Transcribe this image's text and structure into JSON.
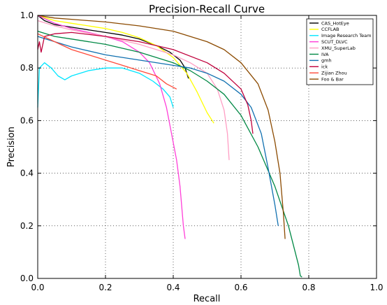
{
  "chart_data": {
    "type": "line",
    "title": "Precision-Recall Curve",
    "xlabel": "Recall",
    "ylabel": "Precision",
    "xlim": [
      0.0,
      1.0
    ],
    "ylim": [
      0.0,
      1.0
    ],
    "grid": true,
    "legend_position": "top-right",
    "xticks": [
      "0.0",
      "0.2",
      "0.4",
      "0.6",
      "0.8",
      "1.0"
    ],
    "yticks": [
      "0.0",
      "0.2",
      "0.4",
      "0.6",
      "0.8",
      "1.0"
    ],
    "series": [
      {
        "name": "CAS_HotEye",
        "color": "#000000",
        "points": [
          [
            0.0,
            1.0
          ],
          [
            0.02,
            0.98
          ],
          [
            0.05,
            0.965
          ],
          [
            0.1,
            0.955
          ],
          [
            0.15,
            0.945
          ],
          [
            0.2,
            0.935
          ],
          [
            0.25,
            0.925
          ],
          [
            0.3,
            0.91
          ],
          [
            0.35,
            0.885
          ],
          [
            0.39,
            0.86
          ],
          [
            0.42,
            0.83
          ],
          [
            0.435,
            0.8
          ],
          [
            0.44,
            0.78
          ],
          [
            0.445,
            0.76
          ]
        ]
      },
      {
        "name": "CCFLAB",
        "color": "#ffff00",
        "points": [
          [
            0.0,
            1.0
          ],
          [
            0.05,
            0.98
          ],
          [
            0.1,
            0.97
          ],
          [
            0.15,
            0.96
          ],
          [
            0.2,
            0.95
          ],
          [
            0.25,
            0.935
          ],
          [
            0.3,
            0.915
          ],
          [
            0.35,
            0.885
          ],
          [
            0.4,
            0.84
          ],
          [
            0.44,
            0.78
          ],
          [
            0.47,
            0.71
          ],
          [
            0.5,
            0.63
          ],
          [
            0.52,
            0.59
          ]
        ]
      },
      {
        "name": "Image Research Team",
        "color": "#00e5ff",
        "points": [
          [
            0.0,
            0.65
          ],
          [
            0.005,
            0.8
          ],
          [
            0.02,
            0.82
          ],
          [
            0.04,
            0.8
          ],
          [
            0.06,
            0.77
          ],
          [
            0.08,
            0.755
          ],
          [
            0.1,
            0.77
          ],
          [
            0.15,
            0.79
          ],
          [
            0.2,
            0.8
          ],
          [
            0.25,
            0.8
          ],
          [
            0.3,
            0.78
          ],
          [
            0.34,
            0.75
          ],
          [
            0.37,
            0.72
          ],
          [
            0.39,
            0.69
          ],
          [
            0.4,
            0.65
          ]
        ]
      },
      {
        "name": "SCUT_DLVC",
        "color": "#ff3fd8",
        "points": [
          [
            0.0,
            1.0
          ],
          [
            0.05,
            0.97
          ],
          [
            0.1,
            0.95
          ],
          [
            0.15,
            0.935
          ],
          [
            0.2,
            0.92
          ],
          [
            0.25,
            0.9
          ],
          [
            0.3,
            0.86
          ],
          [
            0.33,
            0.82
          ],
          [
            0.36,
            0.74
          ],
          [
            0.38,
            0.65
          ],
          [
            0.395,
            0.55
          ],
          [
            0.41,
            0.45
          ],
          [
            0.42,
            0.35
          ],
          [
            0.43,
            0.2
          ],
          [
            0.435,
            0.15
          ]
        ]
      },
      {
        "name": "XMU_SuperLab",
        "color": "#ff9ec4",
        "points": [
          [
            0.0,
            0.98
          ],
          [
            0.05,
            0.96
          ],
          [
            0.1,
            0.945
          ],
          [
            0.2,
            0.92
          ],
          [
            0.3,
            0.89
          ],
          [
            0.4,
            0.85
          ],
          [
            0.45,
            0.82
          ],
          [
            0.5,
            0.78
          ],
          [
            0.53,
            0.72
          ],
          [
            0.55,
            0.64
          ],
          [
            0.56,
            0.55
          ],
          [
            0.565,
            0.45
          ]
        ]
      },
      {
        "name": "IVA",
        "color": "#008844",
        "points": [
          [
            0.0,
            0.94
          ],
          [
            0.05,
            0.92
          ],
          [
            0.1,
            0.91
          ],
          [
            0.2,
            0.89
          ],
          [
            0.3,
            0.86
          ],
          [
            0.4,
            0.82
          ],
          [
            0.45,
            0.79
          ],
          [
            0.5,
            0.75
          ],
          [
            0.55,
            0.7
          ],
          [
            0.6,
            0.62
          ],
          [
            0.65,
            0.5
          ],
          [
            0.7,
            0.35
          ],
          [
            0.74,
            0.2
          ],
          [
            0.77,
            0.05
          ],
          [
            0.775,
            0.01
          ],
          [
            0.78,
            0.005
          ]
        ]
      },
      {
        "name": "gmh",
        "color": "#1070b0",
        "points": [
          [
            0.0,
            0.92
          ],
          [
            0.05,
            0.9
          ],
          [
            0.1,
            0.88
          ],
          [
            0.2,
            0.85
          ],
          [
            0.3,
            0.83
          ],
          [
            0.4,
            0.81
          ],
          [
            0.45,
            0.8
          ],
          [
            0.5,
            0.78
          ],
          [
            0.55,
            0.75
          ],
          [
            0.6,
            0.7
          ],
          [
            0.63,
            0.65
          ],
          [
            0.66,
            0.55
          ],
          [
            0.68,
            0.42
          ],
          [
            0.7,
            0.28
          ],
          [
            0.71,
            0.2
          ]
        ]
      },
      {
        "name": "ick",
        "color": "#c0003c",
        "points": [
          [
            0.0,
            0.87
          ],
          [
            0.005,
            0.9
          ],
          [
            0.01,
            0.86
          ],
          [
            0.02,
            0.92
          ],
          [
            0.05,
            0.93
          ],
          [
            0.1,
            0.935
          ],
          [
            0.2,
            0.92
          ],
          [
            0.3,
            0.9
          ],
          [
            0.4,
            0.87
          ],
          [
            0.5,
            0.82
          ],
          [
            0.55,
            0.78
          ],
          [
            0.6,
            0.72
          ],
          [
            0.62,
            0.66
          ],
          [
            0.63,
            0.6
          ],
          [
            0.635,
            0.55
          ]
        ]
      },
      {
        "name": "Zijian Zhou",
        "color": "#ff4a3a",
        "points": [
          [
            0.0,
            0.93
          ],
          [
            0.05,
            0.9
          ],
          [
            0.1,
            0.87
          ],
          [
            0.15,
            0.85
          ],
          [
            0.2,
            0.83
          ],
          [
            0.25,
            0.81
          ],
          [
            0.3,
            0.79
          ],
          [
            0.35,
            0.77
          ],
          [
            0.38,
            0.74
          ],
          [
            0.41,
            0.72
          ]
        ]
      },
      {
        "name": "Foo & Bar",
        "color": "#8b4a00",
        "points": [
          [
            0.0,
            1.0
          ],
          [
            0.05,
            0.99
          ],
          [
            0.1,
            0.985
          ],
          [
            0.2,
            0.975
          ],
          [
            0.3,
            0.96
          ],
          [
            0.4,
            0.94
          ],
          [
            0.5,
            0.9
          ],
          [
            0.55,
            0.87
          ],
          [
            0.6,
            0.82
          ],
          [
            0.65,
            0.74
          ],
          [
            0.68,
            0.64
          ],
          [
            0.7,
            0.52
          ],
          [
            0.715,
            0.4
          ],
          [
            0.725,
            0.25
          ],
          [
            0.73,
            0.15
          ]
        ]
      }
    ]
  }
}
